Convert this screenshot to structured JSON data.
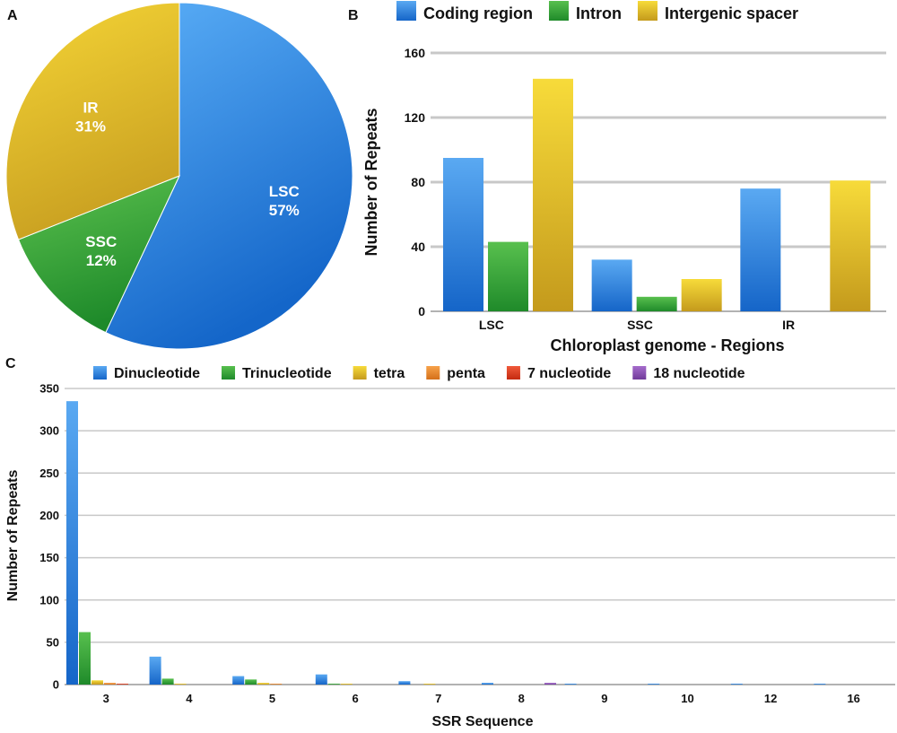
{
  "panels": {
    "a": "A",
    "b": "B",
    "c": "C"
  },
  "colors": {
    "blue": "#2f86e0",
    "green": "#3aa63a",
    "yellow": "#ecc530",
    "orange": "#f08a24",
    "red": "#e23a1a",
    "purple": "#8d4fb3",
    "grid": "#c8c8c8"
  },
  "chart_data": [
    {
      "type": "pie",
      "panel": "A",
      "slices": [
        {
          "name": "LSC",
          "value": 57,
          "label": "57%",
          "color_key": "blue"
        },
        {
          "name": "SSC",
          "value": 12,
          "label": "12%",
          "color_key": "green"
        },
        {
          "name": "IR",
          "value": 31,
          "label": "31%",
          "color_key": "yellow"
        }
      ]
    },
    {
      "type": "bar",
      "panel": "B",
      "categories": [
        "LSC",
        "SSC",
        "IR"
      ],
      "series": [
        {
          "name": "Coding region",
          "values": [
            95,
            32,
            76
          ],
          "color_key": "blue"
        },
        {
          "name": "Intron",
          "values": [
            43,
            9,
            0
          ],
          "color_key": "green"
        },
        {
          "name": "Intergenic spacer",
          "values": [
            144,
            20,
            81
          ],
          "color_key": "yellow"
        }
      ],
      "xlabel": "Chloroplast genome - Regions",
      "ylabel": "Number of Repeats",
      "yticks": [
        0,
        40,
        80,
        120,
        160
      ],
      "ylim": [
        0,
        160
      ],
      "grid": true,
      "legend": "top"
    },
    {
      "type": "bar",
      "panel": "C",
      "categories": [
        "3",
        "4",
        "5",
        "6",
        "7",
        "8",
        "9",
        "10",
        "12",
        "16"
      ],
      "series": [
        {
          "name": "Dinucleotide",
          "values": [
            335,
            33,
            10,
            12,
            4,
            2,
            1,
            1,
            1,
            1
          ],
          "color_key": "blue"
        },
        {
          "name": "Trinucleotide",
          "values": [
            62,
            7,
            6,
            1,
            0,
            0,
            0,
            0,
            0,
            0
          ],
          "color_key": "green"
        },
        {
          "name": "tetra",
          "values": [
            5,
            1,
            2,
            1,
            1,
            0,
            0,
            0,
            0,
            0
          ],
          "color_key": "yellow"
        },
        {
          "name": "penta",
          "values": [
            2,
            0,
            1,
            0,
            0,
            0,
            0,
            0,
            0,
            0
          ],
          "color_key": "orange"
        },
        {
          "name": "7 nucleotide",
          "values": [
            1,
            0,
            0,
            0,
            0,
            0,
            0,
            0,
            0,
            0
          ],
          "color_key": "red"
        },
        {
          "name": "18 nucleotide",
          "values": [
            0,
            0,
            0,
            0,
            0,
            2,
            0,
            0,
            0,
            0
          ],
          "color_key": "purple"
        }
      ],
      "xlabel": "SSR Sequence",
      "ylabel": "Number of Repeats",
      "yticks": [
        0,
        50,
        100,
        150,
        200,
        250,
        300,
        350
      ],
      "ylim": [
        0,
        350
      ],
      "grid": true,
      "legend": "top"
    }
  ]
}
